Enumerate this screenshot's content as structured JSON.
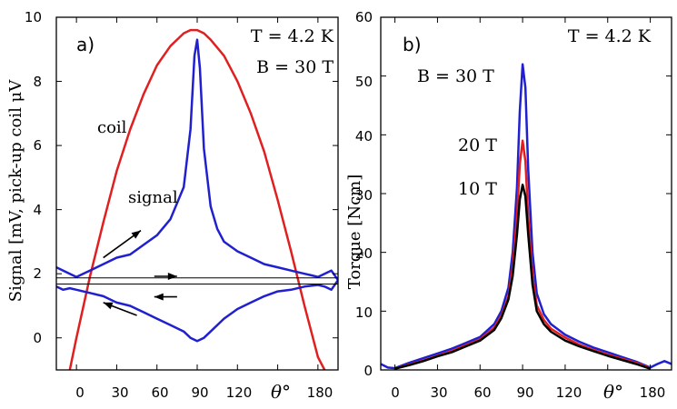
{
  "chart_data": [
    {
      "type": "line",
      "panel_label": "a)",
      "title": "",
      "xlabel": "θ°",
      "ylabel": "Signal [mV, pick-up coil μV",
      "xlim": [
        -15,
        195
      ],
      "ylim": [
        -1,
        10
      ],
      "xticks": [
        "0",
        "30",
        "60",
        "90",
        "120",
        "180"
      ],
      "yticks": [
        "0",
        "2",
        "4",
        "6",
        "8",
        "10"
      ],
      "annotations": {
        "temperature": "T = 4.2 K",
        "field": "B = 30 T",
        "coil_label": "coil",
        "signal_label": "signal"
      },
      "series": [
        {
          "name": "coil",
          "color": "#e02020",
          "x": [
            -5,
            0,
            10,
            20,
            30,
            40,
            50,
            60,
            70,
            80,
            85,
            90,
            95,
            100,
            110,
            120,
            130,
            140,
            150,
            160,
            170,
            180,
            185
          ],
          "y": [
            -1.0,
            0.0,
            1.9,
            3.6,
            5.2,
            6.5,
            7.6,
            8.5,
            9.1,
            9.5,
            9.6,
            9.6,
            9.5,
            9.3,
            8.8,
            8.0,
            7.0,
            5.8,
            4.3,
            2.7,
            1.0,
            -0.6,
            -1.0
          ]
        },
        {
          "name": "signal up sweep",
          "color": "#2020d0",
          "x": [
            -15,
            -5,
            0,
            10,
            20,
            30,
            40,
            50,
            60,
            70,
            80,
            85,
            88,
            90,
            92,
            95,
            100,
            105,
            110,
            120,
            130,
            140,
            150,
            160,
            170,
            175,
            180,
            185,
            190,
            195
          ],
          "y": [
            2.2,
            2.0,
            1.9,
            2.1,
            2.3,
            2.5,
            2.6,
            2.9,
            3.2,
            3.7,
            4.7,
            6.5,
            8.8,
            9.3,
            8.4,
            5.9,
            4.1,
            3.4,
            3.0,
            2.7,
            2.5,
            2.3,
            2.2,
            2.1,
            2.0,
            1.95,
            1.9,
            2.0,
            2.1,
            1.8
          ]
        },
        {
          "name": "signal down sweep",
          "color": "#2020d0",
          "x": [
            -15,
            -10,
            -5,
            0,
            10,
            20,
            30,
            40,
            50,
            60,
            70,
            80,
            85,
            90,
            95,
            100,
            110,
            120,
            130,
            140,
            150,
            160,
            170,
            180,
            185,
            190,
            195
          ],
          "y": [
            1.6,
            1.5,
            1.55,
            1.5,
            1.4,
            1.3,
            1.1,
            1.0,
            0.8,
            0.6,
            0.4,
            0.2,
            0.0,
            -0.1,
            0.0,
            0.2,
            0.6,
            0.9,
            1.1,
            1.3,
            1.45,
            1.5,
            1.6,
            1.65,
            1.6,
            1.5,
            1.8
          ]
        }
      ],
      "reference_lines": [
        1.68,
        1.87
      ],
      "arrows": [
        {
          "from": [
            20,
            2.5
          ],
          "to": [
            48,
            3.35
          ]
        },
        {
          "from": [
            58,
            1.92
          ],
          "to": [
            75,
            1.92
          ]
        },
        {
          "from": [
            75,
            1.28
          ],
          "to": [
            58,
            1.28
          ]
        },
        {
          "from": [
            45,
            0.7
          ],
          "to": [
            20,
            1.1
          ]
        }
      ]
    },
    {
      "type": "line",
      "panel_label": "b)",
      "title": "",
      "xlabel": "θ°",
      "ylabel": "Torque [Ncm]",
      "xlim": [
        -10,
        195
      ],
      "ylim": [
        0,
        60
      ],
      "xticks": [
        "0",
        "30",
        "60",
        "90",
        "120",
        "180"
      ],
      "yticks": [
        "0",
        "10",
        "20",
        "30",
        "40",
        "50",
        "60"
      ],
      "annotations": {
        "temperature": "T = 4.2 K"
      },
      "series": [
        {
          "name": "B = 30 T",
          "label": "B = 30 T",
          "color": "#2020d0",
          "x": [
            -10,
            -5,
            0,
            10,
            20,
            30,
            40,
            50,
            60,
            70,
            75,
            80,
            83,
            86,
            88,
            90,
            92,
            94,
            97,
            100,
            105,
            110,
            120,
            130,
            140,
            150,
            160,
            170,
            175,
            180,
            185,
            190,
            195
          ],
          "y": [
            1.0,
            0.4,
            0.3,
            1.2,
            2.0,
            2.8,
            3.6,
            4.6,
            5.6,
            7.8,
            10.0,
            14.0,
            20.0,
            31.0,
            44.0,
            52.0,
            48.0,
            34.0,
            20.0,
            13.0,
            9.5,
            7.8,
            6.0,
            4.8,
            3.8,
            3.0,
            2.2,
            1.4,
            0.9,
            0.4,
            1.0,
            1.5,
            1.0
          ]
        },
        {
          "name": "20 T",
          "label": "20 T",
          "color": "#e02020",
          "x": [
            0,
            10,
            20,
            30,
            40,
            50,
            60,
            70,
            75,
            80,
            83,
            86,
            88,
            90,
            92,
            94,
            97,
            100,
            105,
            110,
            120,
            130,
            140,
            150,
            160,
            170,
            180
          ],
          "y": [
            0.2,
            0.9,
            1.6,
            2.4,
            3.2,
            4.2,
            5.2,
            7.2,
            9.2,
            12.5,
            17.5,
            26.0,
            35.0,
            39.0,
            35.5,
            26.0,
            16.0,
            11.0,
            8.5,
            7.0,
            5.5,
            4.3,
            3.4,
            2.6,
            1.9,
            1.2,
            0.3
          ]
        },
        {
          "name": "10 T",
          "label": "10 T",
          "color": "#000000",
          "x": [
            0,
            10,
            20,
            30,
            40,
            50,
            60,
            70,
            75,
            80,
            83,
            86,
            88,
            90,
            92,
            94,
            97,
            100,
            105,
            110,
            120,
            130,
            140,
            150,
            160,
            170,
            180
          ],
          "y": [
            0.2,
            0.8,
            1.5,
            2.3,
            3.0,
            4.0,
            5.0,
            6.8,
            8.8,
            12.0,
            16.0,
            23.0,
            29.0,
            31.5,
            29.5,
            23.0,
            14.5,
            10.0,
            7.8,
            6.5,
            5.0,
            4.0,
            3.2,
            2.4,
            1.7,
            1.0,
            0.2
          ]
        }
      ]
    }
  ]
}
